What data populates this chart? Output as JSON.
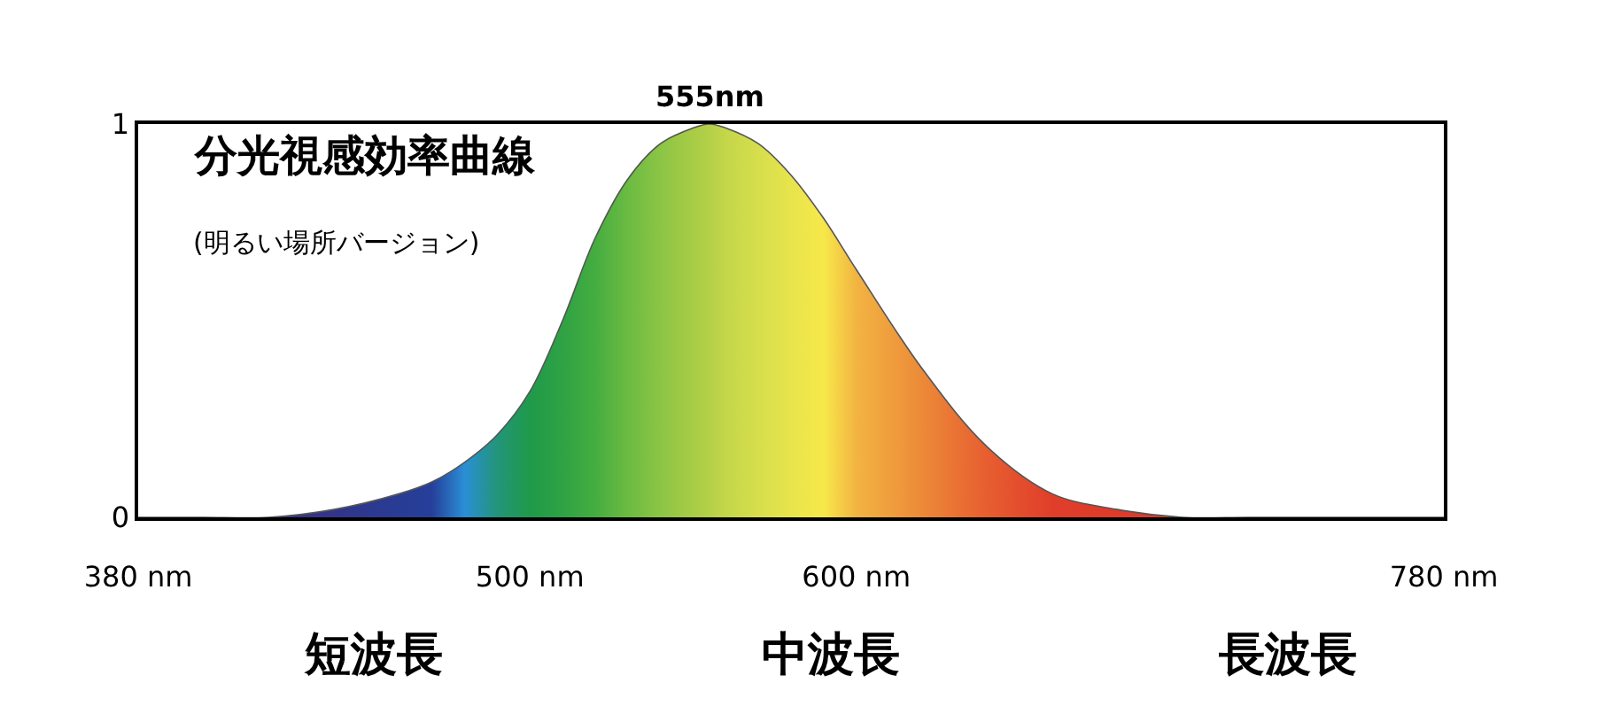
{
  "chart_data": {
    "type": "area",
    "title": "分光視感効率曲線",
    "subtitle": "(明るい場所バージョン)",
    "x": [
      380,
      400,
      420,
      440,
      460,
      470,
      480,
      490,
      500,
      510,
      520,
      530,
      540,
      550,
      555,
      560,
      570,
      580,
      590,
      600,
      620,
      640,
      660,
      680,
      700,
      720,
      740,
      760,
      780
    ],
    "series": [
      {
        "color": "#555555",
        "values": [
          0,
          0,
          0,
          0.02,
          0.06,
          0.09,
          0.14,
          0.21,
          0.32,
          0.5,
          0.71,
          0.86,
          0.95,
          0.99,
          1,
          0.99,
          0.95,
          0.87,
          0.76,
          0.63,
          0.38,
          0.18,
          0.06,
          0.02,
          0,
          0,
          0,
          0,
          0
        ],
        "colors": [
          "#3a2a7a",
          "#3b2b80",
          "#3b2d88",
          "#33348c",
          "#283c94",
          "#263f9a",
          "#2a8fd6",
          "#22957a",
          "#1f9a4a",
          "#2fa244",
          "#45ad40",
          "#6bbb42",
          "#8cc545",
          "#a8cc45",
          "#b4d048",
          "#c4d64a",
          "#d6de4c",
          "#e8e44c",
          "#f7e84a",
          "#f2b442",
          "#ec8a38",
          "#e75e30",
          "#e03e2a",
          "#df3a2a",
          "#df3a2a",
          "#df3a2a",
          "#df3a2a",
          "#df3a2a",
          "#df3a2a"
        ]
      }
    ],
    "xlim": [
      380,
      780
    ],
    "xticks": [
      {
        "value": 380,
        "label": "380 nm"
      },
      {
        "value": 500,
        "label": "500 nm"
      },
      {
        "value": 600,
        "label": "600 nm"
      },
      {
        "value": 780,
        "label": "780 nm"
      }
    ],
    "ylim": [
      0,
      1
    ],
    "yticks": [
      0,
      1
    ],
    "annotations": [
      {
        "text": "555nm",
        "x": 555,
        "y": 1
      },
      "短波長",
      "中波長",
      "長波長"
    ]
  }
}
